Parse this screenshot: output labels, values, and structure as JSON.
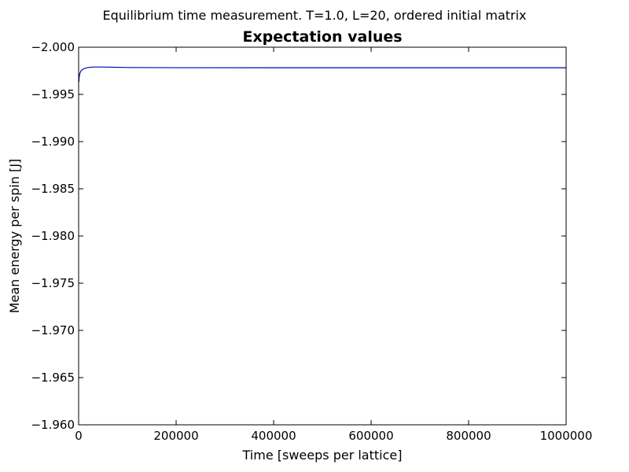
{
  "chart_data": {
    "type": "line",
    "suptitle": "Equilibrium time measurement. T=1.0, L=20, ordered initial matrix",
    "title": "Expectation values",
    "xlabel": "Time [sweeps per lattice]",
    "ylabel": "Mean energy per spin [J]",
    "xlim": [
      0,
      1000000
    ],
    "ylim": [
      -1.96,
      -2.0
    ],
    "y_axis_inverted": true,
    "x_ticks": [
      0,
      200000,
      400000,
      600000,
      800000,
      1000000
    ],
    "x_tick_labels": [
      "0",
      "200000",
      "400000",
      "600000",
      "800000",
      "1000000"
    ],
    "y_ticks": [
      -2.0,
      -1.995,
      -1.99,
      -1.985,
      -1.98,
      -1.975,
      -1.97,
      -1.965,
      -1.96
    ],
    "y_tick_labels": [
      "−2.000",
      "−1.995",
      "−1.990",
      "−1.985",
      "−1.980",
      "−1.975",
      "−1.970",
      "−1.965",
      "−1.960"
    ],
    "grid": false,
    "series": [
      {
        "color": "#0000b4",
        "x": [
          500,
          1000,
          2000,
          3000,
          4000,
          5000,
          7000,
          10000,
          15000,
          20000,
          30000,
          50000,
          100000,
          200000,
          400000,
          600000,
          800000,
          1000000
        ],
        "y": [
          -1.9963,
          -1.9968,
          -1.9971,
          -1.9973,
          -1.9974,
          -1.9975,
          -1.9976,
          -1.9977,
          -1.9978,
          -1.99785,
          -1.9979,
          -1.9979,
          -1.99785,
          -1.99783,
          -1.99782,
          -1.99782,
          -1.99782,
          -1.99782
        ]
      }
    ]
  }
}
